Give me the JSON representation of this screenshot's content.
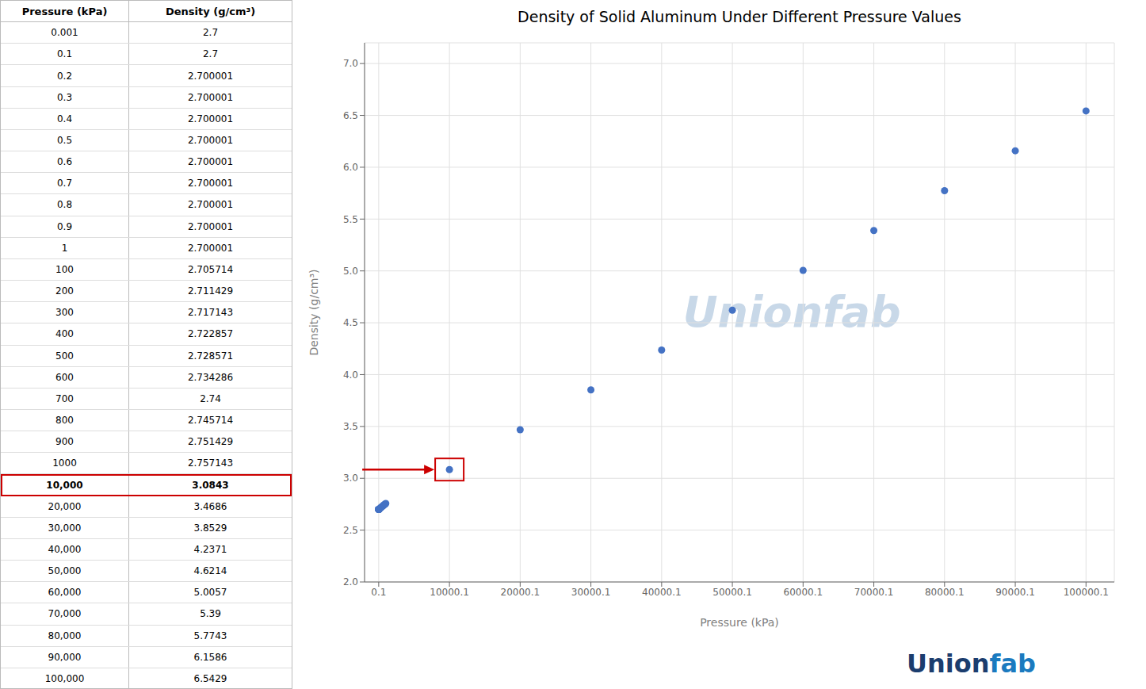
{
  "chart_data": [
    {
      "type": "scatter",
      "title": "Density of Solid Aluminum Under Different Pressure Values",
      "xlabel": "Pressure (kPa)",
      "ylabel": "Density (g/cm³)",
      "x": [
        0.001,
        0.1,
        0.2,
        0.3,
        0.4,
        0.5,
        0.6,
        0.7,
        0.8,
        0.9,
        1,
        100,
        200,
        300,
        400,
        500,
        600,
        700,
        800,
        900,
        1000,
        10000,
        20000,
        30000,
        40000,
        50000,
        60000,
        70000,
        80000,
        90000,
        100000
      ],
      "values": [
        2.7,
        2.7,
        2.700001,
        2.700001,
        2.700001,
        2.700001,
        2.700001,
        2.700001,
        2.700001,
        2.700001,
        2.700001,
        2.705714,
        2.711429,
        2.717143,
        2.722857,
        2.728571,
        2.734286,
        2.74,
        2.745714,
        2.751429,
        2.757143,
        3.0843,
        3.4686,
        3.8529,
        4.2371,
        4.6214,
        5.0057,
        5.39,
        5.7743,
        6.1586,
        6.5429
      ],
      "color": "#4472c4",
      "xlim": [
        -2000,
        104000
      ],
      "xticks": [
        0.1,
        10000.1,
        20000.1,
        30000.1,
        40000.1,
        50000.1,
        60000.1,
        70000.1,
        80000.1,
        90000.1,
        100000.1
      ],
      "ylim": [
        2.0,
        7.2
      ],
      "yticks": [
        {
          "value": 2.0,
          "label": "2.0"
        },
        {
          "value": 2.5,
          "label": "2.5"
        },
        {
          "value": 3.0,
          "label": "3.0"
        },
        {
          "value": 3.5,
          "label": "3.5"
        },
        {
          "value": 4.0,
          "label": "4.0"
        },
        {
          "value": 4.5,
          "label": "4.5"
        },
        {
          "value": 5.0,
          "label": "5.0"
        },
        {
          "value": 5.5,
          "label": "5.5"
        },
        {
          "value": 6.0,
          "label": "6.0"
        },
        {
          "value": 6.5,
          "label": "6.5"
        },
        {
          "value": 7.0,
          "label": "7.0"
        }
      ],
      "grid": true,
      "highlight": {
        "x": 10000,
        "y": 3.0843,
        "color": "#cc0000"
      },
      "annotations": [
        {
          "text": "Unionfab",
          "color": "#c8d8e8"
        },
        {
          "text": "Union",
          "color": "#1b3d6e"
        },
        {
          "text": "fab",
          "color": "#1a7abf"
        }
      ]
    },
    {
      "type": "table",
      "columns": [
        "Pressure (kPa)",
        "Density (g/cm³)"
      ],
      "rows": [
        [
          "0.001",
          "2.7"
        ],
        [
          "0.1",
          "2.7"
        ],
        [
          "0.2",
          "2.700001"
        ],
        [
          "0.3",
          "2.700001"
        ],
        [
          "0.4",
          "2.700001"
        ],
        [
          "0.5",
          "2.700001"
        ],
        [
          "0.6",
          "2.700001"
        ],
        [
          "0.7",
          "2.700001"
        ],
        [
          "0.8",
          "2.700001"
        ],
        [
          "0.9",
          "2.700001"
        ],
        [
          "1",
          "2.700001"
        ],
        [
          "100",
          "2.705714"
        ],
        [
          "200",
          "2.711429"
        ],
        [
          "300",
          "2.717143"
        ],
        [
          "400",
          "2.722857"
        ],
        [
          "500",
          "2.728571"
        ],
        [
          "600",
          "2.734286"
        ],
        [
          "700",
          "2.74"
        ],
        [
          "800",
          "2.745714"
        ],
        [
          "900",
          "2.751429"
        ],
        [
          "1000",
          "2.757143"
        ],
        [
          "10,000",
          "3.0843"
        ],
        [
          "20,000",
          "3.4686"
        ],
        [
          "30,000",
          "3.8529"
        ],
        [
          "40,000",
          "4.2371"
        ],
        [
          "50,000",
          "4.6214"
        ],
        [
          "60,000",
          "5.0057"
        ],
        [
          "70,000",
          "5.39"
        ],
        [
          "80,000",
          "5.7743"
        ],
        [
          "90,000",
          "6.1586"
        ],
        [
          "100,000",
          "6.5429"
        ]
      ],
      "highlight": {
        "row": [
          "10,000",
          "3.0843"
        ],
        "color": "#cc0000"
      }
    }
  ]
}
